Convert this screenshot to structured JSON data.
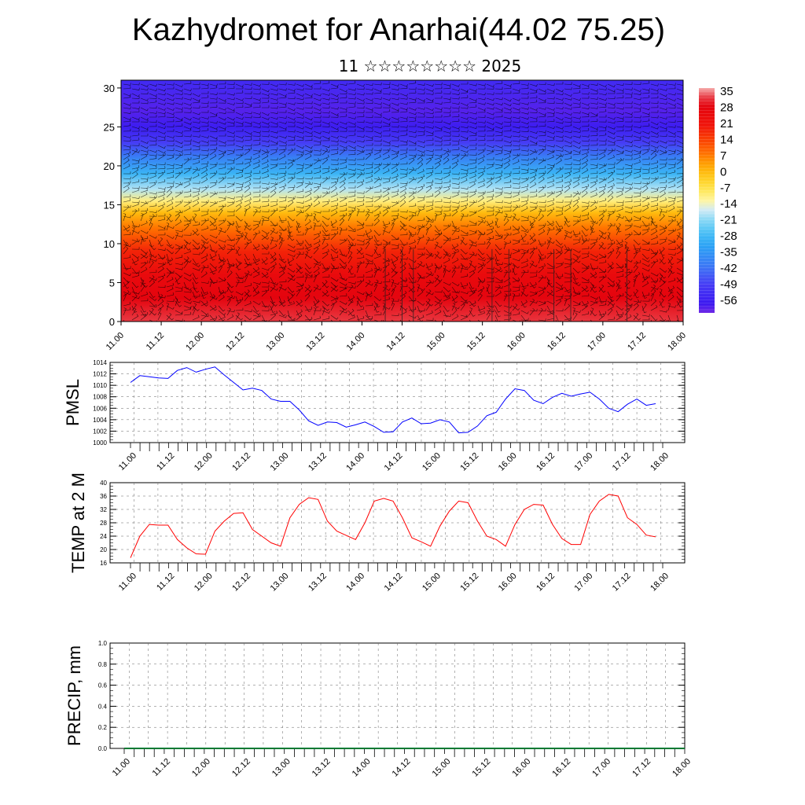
{
  "title": "Kazhydromet for Anarhai(44.02 75.25)",
  "subtitle": "11 ☆☆☆☆☆☆☆☆ 2025",
  "chart_data": [
    {
      "type": "heatmap",
      "title": "Kazhydromet for Anarhai(44.02 75.25)",
      "subtitle": "11 ☆☆☆☆☆☆☆☆ 2025",
      "x_tick_labels": [
        "11.00",
        "11.12",
        "12.00",
        "12.12",
        "13.00",
        "13.12",
        "14.00",
        "14.12",
        "15.00",
        "15.12",
        "16.00",
        "16.12",
        "17.00",
        "17.12",
        "18.00"
      ],
      "y_tick_labels": [
        "0",
        "5",
        "10",
        "15",
        "20",
        "25",
        "30"
      ],
      "ylim": [
        0,
        31
      ],
      "colorbar_labels": [
        "35",
        "28",
        "21",
        "14",
        "7",
        "0",
        "-7",
        "-14",
        "-21",
        "-28",
        "-35",
        "-42",
        "-49",
        "-56"
      ],
      "temperature_profile": [
        {
          "height": 0,
          "value": 32
        },
        {
          "height": 3,
          "value": 28
        },
        {
          "height": 6,
          "value": 25
        },
        {
          "height": 9,
          "value": 18
        },
        {
          "height": 12,
          "value": 8
        },
        {
          "height": 14,
          "value": 0
        },
        {
          "height": 15.5,
          "value": -10
        },
        {
          "height": 17,
          "value": -18
        },
        {
          "height": 19,
          "value": -28
        },
        {
          "height": 21,
          "value": -38
        },
        {
          "height": 23,
          "value": -48
        },
        {
          "height": 25,
          "value": -55
        },
        {
          "height": 27,
          "value": -58
        },
        {
          "height": 31,
          "value": -52
        }
      ],
      "overlay": "wind barbs",
      "colors": {
        "hot": "#e8000b",
        "warm": "#ffd700",
        "cold": "#3aa0ff",
        "coldest": "#3b20f0"
      }
    },
    {
      "type": "line",
      "ylabel": "PMSL",
      "ylim": [
        1000,
        1014
      ],
      "y_tick_labels": [
        "1014",
        "1012",
        "1010",
        "1008",
        "1006",
        "1004",
        "1002",
        "1000"
      ],
      "x_tick_labels": [
        "11.00",
        "11.12",
        "12.00",
        "12.12",
        "13.00",
        "13.12",
        "14.00",
        "14.12",
        "15.00",
        "15.12",
        "16.00",
        "16.12",
        "17.00",
        "17.12",
        "18.00"
      ],
      "x_step_hours": 3,
      "series": [
        {
          "color": "#0000ff",
          "values": [
            1010.5,
            1011.7,
            1011.5,
            1011.3,
            1011.2,
            1012.6,
            1013.1,
            1012.3,
            1012.8,
            1013.2,
            1011.8,
            1010.5,
            1009.2,
            1009.5,
            1009.1,
            1007.6,
            1007.2,
            1007.2,
            1005.7,
            1003.8,
            1003.0,
            1003.6,
            1003.5,
            1002.7,
            1003.1,
            1003.6,
            1002.8,
            1001.8,
            1001.9,
            1003.6,
            1004.3,
            1003.3,
            1003.4,
            1004.0,
            1003.6,
            1001.7,
            1001.8,
            1002.9,
            1004.7,
            1005.3,
            1007.6,
            1009.4,
            1009.1,
            1007.4,
            1006.8,
            1007.9,
            1008.6,
            1008.1,
            1008.5,
            1008.8,
            1007.6,
            1006.0,
            1005.4,
            1006.7,
            1007.6,
            1006.5,
            1006.8
          ]
        }
      ]
    },
    {
      "type": "line",
      "ylabel": "TEMP at 2 M",
      "ylim": [
        16,
        40
      ],
      "y_tick_labels": [
        "40",
        "36",
        "32",
        "28",
        "24",
        "20",
        "16"
      ],
      "x_tick_labels": [
        "11.00",
        "11.12",
        "12.00",
        "12.12",
        "13.00",
        "13.12",
        "14.00",
        "14.12",
        "15.00",
        "15.12",
        "16.00",
        "16.12",
        "17.00",
        "17.12",
        "18.00"
      ],
      "x_step_hours": 3,
      "series": [
        {
          "color": "#ff0000",
          "values": [
            17.5,
            24.0,
            27.5,
            27.3,
            27.3,
            23.0,
            20.5,
            18.7,
            18.6,
            25.5,
            28.5,
            30.8,
            31.0,
            26.0,
            24.0,
            22.0,
            21.0,
            29.5,
            33.5,
            35.5,
            35.0,
            28.5,
            25.5,
            24.2,
            23.0,
            28.0,
            34.5,
            35.3,
            34.5,
            29.5,
            23.5,
            22.3,
            21.0,
            27.0,
            31.5,
            34.5,
            34.0,
            28.5,
            24.0,
            23.0,
            21.0,
            27.5,
            32.0,
            33.5,
            33.3,
            27.5,
            23.3,
            21.5,
            21.5,
            30.5,
            34.5,
            36.5,
            36.0,
            29.5,
            27.5,
            24.3,
            23.8
          ]
        }
      ]
    },
    {
      "type": "line",
      "ylabel": "PRECIP, mm",
      "ylim": [
        0.0,
        1.0
      ],
      "y_tick_labels": [
        "1.0",
        "0.8",
        "0.6",
        "0.4",
        "0.2",
        "0.0"
      ],
      "x_tick_labels": [
        "11.00",
        "11.12",
        "12.00",
        "12.12",
        "13.00",
        "13.12",
        "14.00",
        "14.12",
        "15.00",
        "15.12",
        "16.00",
        "16.12",
        "17.00",
        "17.12",
        "18.00"
      ],
      "series": [
        {
          "color": "#007a33",
          "values": [
            0,
            0,
            0,
            0,
            0,
            0,
            0,
            0,
            0,
            0,
            0,
            0,
            0,
            0,
            0,
            0,
            0,
            0,
            0,
            0,
            0,
            0,
            0,
            0,
            0,
            0,
            0,
            0,
            0,
            0,
            0,
            0,
            0,
            0,
            0,
            0,
            0,
            0,
            0,
            0,
            0,
            0,
            0,
            0,
            0,
            0,
            0,
            0,
            0,
            0,
            0,
            0,
            0,
            0,
            0,
            0,
            0
          ]
        }
      ]
    }
  ]
}
